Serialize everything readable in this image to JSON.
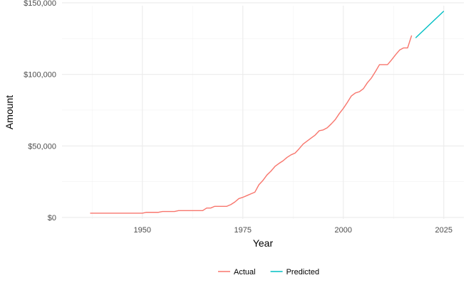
{
  "chart_data": {
    "type": "line",
    "title": "",
    "xlabel": "Year",
    "ylabel": "Amount",
    "xlim": [
      1930,
      2030
    ],
    "ylim": [
      -1000,
      148000
    ],
    "x_ticks": [
      1950,
      1975,
      2000,
      2025
    ],
    "x_tick_labels": [
      "1950",
      "1975",
      "2000",
      "2025"
    ],
    "y_ticks": [
      0,
      50000,
      100000,
      150000
    ],
    "y_tick_labels": [
      "$0",
      "$50,000",
      "$100,000",
      "$150,000"
    ],
    "grid": true,
    "legend_position": "bottom",
    "series": [
      {
        "name": "Actual",
        "color": "#F8766D",
        "x": [
          1937,
          1950,
          1951,
          1954,
          1955,
          1958,
          1959,
          1965,
          1966,
          1967,
          1968,
          1971,
          1972,
          1973,
          1974,
          1975,
          1976,
          1977,
          1978,
          1979,
          1980,
          1981,
          1982,
          1983,
          1984,
          1985,
          1986,
          1987,
          1988,
          1989,
          1990,
          1991,
          1992,
          1993,
          1994,
          1995,
          1996,
          1997,
          1998,
          1999,
          2000,
          2001,
          2002,
          2003,
          2004,
          2005,
          2006,
          2007,
          2008,
          2009,
          2010,
          2011,
          2012,
          2013,
          2014,
          2015,
          2016,
          2017
        ],
        "y": [
          3000,
          3000,
          3600,
          3600,
          4200,
          4200,
          4800,
          4800,
          6600,
          6600,
          7800,
          7800,
          9000,
          10800,
          13200,
          14100,
          15300,
          16500,
          17700,
          22900,
          25900,
          29700,
          32400,
          35700,
          37800,
          39600,
          42000,
          43800,
          45000,
          48000,
          51300,
          53400,
          55500,
          57600,
          60600,
          61200,
          62700,
          65400,
          68400,
          72600,
          76200,
          80400,
          84900,
          87000,
          87900,
          90000,
          94200,
          97500,
          102000,
          106800,
          106800,
          106800,
          110100,
          113700,
          117000,
          118500,
          118500,
          127200
        ]
      },
      {
        "name": "Predicted",
        "color": "#00BFC4",
        "x": [
          2018,
          2025
        ],
        "y": [
          125500,
          144200
        ]
      }
    ]
  }
}
